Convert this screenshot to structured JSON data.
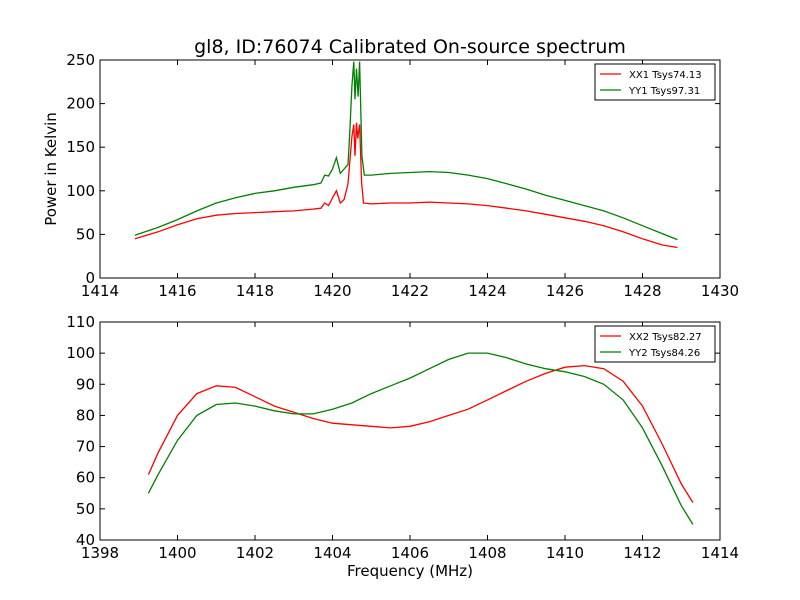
{
  "figure": {
    "title": "gl8, ID:76074 Calibrated On-source spectrum"
  },
  "chart_data": [
    {
      "type": "line",
      "title": "gl8, ID:76074 Calibrated On-source spectrum",
      "xlabel": "",
      "ylabel": "Power in Kelvin",
      "xlim": [
        1414,
        1430
      ],
      "ylim": [
        0,
        250
      ],
      "xticks": [
        "1414",
        "1416",
        "1418",
        "1420",
        "1422",
        "1424",
        "1426",
        "1428",
        "1430"
      ],
      "yticks": [
        "0",
        "50",
        "100",
        "150",
        "200",
        "250"
      ],
      "grid": false,
      "legend_position": "top-right",
      "series": [
        {
          "name": "XX1 Tsys74.13",
          "color": "#ff0000",
          "points": [
            [
              1414.9,
              45
            ],
            [
              1415.5,
              53
            ],
            [
              1416.0,
              61
            ],
            [
              1416.5,
              68
            ],
            [
              1417.0,
              72
            ],
            [
              1417.5,
              74
            ],
            [
              1418.0,
              75
            ],
            [
              1418.5,
              76
            ],
            [
              1419.0,
              77
            ],
            [
              1419.5,
              79
            ],
            [
              1419.7,
              80
            ],
            [
              1419.8,
              86
            ],
            [
              1419.9,
              83
            ],
            [
              1420.0,
              92
            ],
            [
              1420.1,
              100
            ],
            [
              1420.2,
              86
            ],
            [
              1420.3,
              90
            ],
            [
              1420.4,
              108
            ],
            [
              1420.5,
              162
            ],
            [
              1420.55,
              176
            ],
            [
              1420.58,
              140
            ],
            [
              1420.62,
              178
            ],
            [
              1420.65,
              160
            ],
            [
              1420.7,
              176
            ],
            [
              1420.75,
              110
            ],
            [
              1420.8,
              86
            ],
            [
              1421.0,
              85
            ],
            [
              1421.5,
              86
            ],
            [
              1422.0,
              86
            ],
            [
              1422.5,
              87
            ],
            [
              1423.0,
              86
            ],
            [
              1423.5,
              85
            ],
            [
              1424.0,
              83
            ],
            [
              1424.5,
              80
            ],
            [
              1425.0,
              77
            ],
            [
              1425.5,
              73
            ],
            [
              1426.0,
              69
            ],
            [
              1426.5,
              65
            ],
            [
              1427.0,
              60
            ],
            [
              1427.5,
              53
            ],
            [
              1428.0,
              45
            ],
            [
              1428.5,
              38
            ],
            [
              1428.9,
              35
            ]
          ]
        },
        {
          "name": "YY1 Tsys97.31",
          "color": "#008000",
          "points": [
            [
              1414.9,
              49
            ],
            [
              1415.5,
              58
            ],
            [
              1416.0,
              67
            ],
            [
              1416.5,
              77
            ],
            [
              1417.0,
              86
            ],
            [
              1417.5,
              92
            ],
            [
              1418.0,
              97
            ],
            [
              1418.5,
              100
            ],
            [
              1419.0,
              104
            ],
            [
              1419.5,
              107
            ],
            [
              1419.7,
              109
            ],
            [
              1419.8,
              118
            ],
            [
              1419.9,
              117
            ],
            [
              1420.0,
              125
            ],
            [
              1420.1,
              138
            ],
            [
              1420.2,
              120
            ],
            [
              1420.3,
              125
            ],
            [
              1420.4,
              130
            ],
            [
              1420.45,
              170
            ],
            [
              1420.5,
              220
            ],
            [
              1420.55,
              248
            ],
            [
              1420.58,
              205
            ],
            [
              1420.62,
              240
            ],
            [
              1420.66,
              208
            ],
            [
              1420.7,
              248
            ],
            [
              1420.76,
              140
            ],
            [
              1420.82,
              118
            ],
            [
              1421.0,
              118
            ],
            [
              1421.5,
              120
            ],
            [
              1422.0,
              121
            ],
            [
              1422.5,
              122
            ],
            [
              1423.0,
              121
            ],
            [
              1423.5,
              118
            ],
            [
              1424.0,
              114
            ],
            [
              1424.5,
              108
            ],
            [
              1425.0,
              102
            ],
            [
              1425.5,
              95
            ],
            [
              1426.0,
              89
            ],
            [
              1426.5,
              83
            ],
            [
              1427.0,
              77
            ],
            [
              1427.5,
              69
            ],
            [
              1428.0,
              60
            ],
            [
              1428.5,
              51
            ],
            [
              1428.9,
              44
            ]
          ]
        }
      ]
    },
    {
      "type": "line",
      "title": "",
      "xlabel": "Frequency (MHz)",
      "ylabel": "",
      "xlim": [
        1398,
        1414
      ],
      "ylim": [
        40,
        110
      ],
      "xticks": [
        "1398",
        "1400",
        "1402",
        "1404",
        "1406",
        "1408",
        "1410",
        "1412",
        "1414"
      ],
      "yticks": [
        "40",
        "50",
        "60",
        "70",
        "80",
        "90",
        "100",
        "110"
      ],
      "grid": false,
      "legend_position": "top-right",
      "series": [
        {
          "name": "XX2 Tsys82.27",
          "color": "#ff0000",
          "points": [
            [
              1399.25,
              61
            ],
            [
              1399.5,
              68
            ],
            [
              1400.0,
              80
            ],
            [
              1400.5,
              87
            ],
            [
              1401.0,
              89.5
            ],
            [
              1401.5,
              89
            ],
            [
              1402.0,
              86
            ],
            [
              1402.5,
              83
            ],
            [
              1403.0,
              81
            ],
            [
              1403.5,
              79
            ],
            [
              1404.0,
              77.5
            ],
            [
              1404.5,
              77
            ],
            [
              1405.0,
              76.5
            ],
            [
              1405.5,
              76
            ],
            [
              1406.0,
              76.5
            ],
            [
              1406.5,
              78
            ],
            [
              1407.0,
              80
            ],
            [
              1407.5,
              82
            ],
            [
              1408.0,
              85
            ],
            [
              1408.5,
              88
            ],
            [
              1409.0,
              91
            ],
            [
              1409.5,
              93.5
            ],
            [
              1410.0,
              95.5
            ],
            [
              1410.5,
              96
            ],
            [
              1411.0,
              95
            ],
            [
              1411.5,
              91
            ],
            [
              1412.0,
              83
            ],
            [
              1412.5,
              71
            ],
            [
              1413.0,
              58
            ],
            [
              1413.3,
              52
            ]
          ]
        },
        {
          "name": "YY2 Tsys84.26",
          "color": "#008000",
          "points": [
            [
              1399.25,
              55
            ],
            [
              1399.5,
              61
            ],
            [
              1400.0,
              72
            ],
            [
              1400.5,
              80
            ],
            [
              1401.0,
              83.5
            ],
            [
              1401.5,
              84
            ],
            [
              1402.0,
              83
            ],
            [
              1402.5,
              81.5
            ],
            [
              1403.0,
              80.5
            ],
            [
              1403.5,
              80.5
            ],
            [
              1404.0,
              82
            ],
            [
              1404.5,
              84
            ],
            [
              1405.0,
              87
            ],
            [
              1405.5,
              89.5
            ],
            [
              1406.0,
              92
            ],
            [
              1406.5,
              95
            ],
            [
              1407.0,
              98
            ],
            [
              1407.5,
              100
            ],
            [
              1408.0,
              100
            ],
            [
              1408.5,
              98.5
            ],
            [
              1409.0,
              96.5
            ],
            [
              1409.5,
              95
            ],
            [
              1410.0,
              94
            ],
            [
              1410.5,
              92.5
            ],
            [
              1411.0,
              90
            ],
            [
              1411.5,
              85
            ],
            [
              1412.0,
              76
            ],
            [
              1412.5,
              64
            ],
            [
              1413.0,
              51
            ],
            [
              1413.3,
              45
            ]
          ]
        }
      ]
    }
  ]
}
